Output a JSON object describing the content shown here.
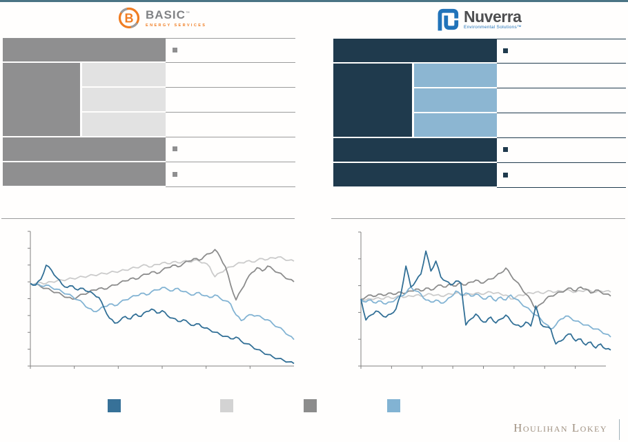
{
  "header": {
    "basic_logo": {
      "alt": "Basic Energy Services",
      "monogram": "B",
      "wordmark": "BASIC",
      "trademark": "™",
      "subtext": "ENERGY SERVICES"
    },
    "nuverra_logo": {
      "alt": "Nuverra Environmental Solutions",
      "wordmark": "Nuverra",
      "subtext": "Environmental Solutions™"
    }
  },
  "tables": {
    "left": {
      "style": "redacted gray blocks",
      "rows": 6,
      "merged_rows": [
        2,
        3,
        4
      ],
      "bullet_rows": [
        1,
        5,
        6
      ],
      "block_color": "#8F8F90",
      "cell_color": "#E2E2E2",
      "line_color": "#9B9B9B"
    },
    "right": {
      "style": "redacted navy blocks",
      "rows": 6,
      "merged_rows": [
        2,
        3,
        4
      ],
      "bullet_rows": [
        1,
        5,
        6
      ],
      "block_color": "#1F3A4D",
      "cell_color": "#8CB6D2",
      "line_color": "#1F3A4D"
    }
  },
  "chart_data": [
    {
      "type": "line",
      "title": "",
      "x_axis": {
        "tick_count": 6,
        "labels_visible": false
      },
      "y_axis": {
        "tick_count": 9,
        "labels_visible": false
      },
      "ylim": [
        0,
        163
      ],
      "legend_position": "below",
      "grid": false,
      "series": [
        {
          "name": "dark_blue",
          "color": "#316F96",
          "z": 4,
          "values": [
            100,
            98,
            105,
            122,
            116,
            107,
            99,
            95,
            97,
            92,
            94,
            90,
            87,
            83,
            70,
            58,
            52,
            55,
            60,
            57,
            63,
            60,
            66,
            69,
            64,
            67,
            61,
            58,
            54,
            56,
            52,
            49,
            51,
            46,
            44,
            41,
            38,
            36,
            33,
            35,
            30,
            27,
            24,
            20,
            17,
            14,
            11,
            9,
            7,
            5,
            3
          ]
        },
        {
          "name": "light_gray",
          "color": "#CBCBCB",
          "z": 1,
          "values": [
            100,
            100,
            101,
            100,
            102,
            103,
            104,
            105,
            106,
            107,
            108,
            109,
            110,
            111,
            112,
            113,
            114,
            115,
            116,
            118,
            119,
            121,
            122,
            120,
            123,
            125,
            124,
            126,
            125,
            127,
            126,
            128,
            127,
            125,
            120,
            108,
            113,
            117,
            120,
            123,
            125,
            127,
            126,
            128,
            130,
            129,
            131,
            132,
            130,
            128,
            127
          ]
        },
        {
          "name": "medium_gray",
          "color": "#8C8C8C",
          "z": 2,
          "values": [
            100,
            99,
            96,
            94,
            91,
            89,
            86,
            83,
            81,
            84,
            87,
            89,
            92,
            94,
            93,
            96,
            98,
            101,
            103,
            106,
            105,
            109,
            111,
            114,
            112,
            116,
            119,
            122,
            120,
            124,
            127,
            130,
            128,
            133,
            136,
            141,
            132,
            120,
            98,
            80,
            92,
            104,
            113,
            119,
            115,
            121,
            117,
            113,
            109,
            105,
            102
          ]
        },
        {
          "name": "light_blue",
          "color": "#82B3D3",
          "z": 3,
          "values": [
            100,
            99,
            97,
            98,
            95,
            93,
            90,
            87,
            84,
            80,
            76,
            70,
            66,
            68,
            72,
            75,
            73,
            77,
            80,
            83,
            85,
            88,
            86,
            90,
            92,
            95,
            93,
            91,
            94,
            90,
            88,
            86,
            89,
            85,
            83,
            86,
            82,
            79,
            75,
            62,
            55,
            60,
            62,
            61,
            58,
            56,
            51,
            47,
            43,
            37,
            32
          ]
        }
      ]
    },
    {
      "type": "line",
      "title": "",
      "x_axis": {
        "tick_count": 8,
        "labels_visible": false
      },
      "y_axis": {
        "tick_count": 6,
        "labels_visible": false
      },
      "ylim": [
        33,
        167
      ],
      "legend_position": "below",
      "grid": false,
      "series": [
        {
          "name": "dark_blue",
          "color": "#316F96",
          "z": 4,
          "values": [
            100,
            79,
            84,
            88,
            85,
            82,
            85,
            90,
            105,
            133,
            112,
            118,
            125,
            148,
            128,
            138,
            122,
            118,
            114,
            118,
            116,
            74,
            80,
            85,
            79,
            77,
            82,
            76,
            80,
            84,
            78,
            74,
            72,
            77,
            73,
            93,
            75,
            72,
            70,
            55,
            58,
            63,
            65,
            58,
            60,
            54,
            57,
            51,
            55,
            50,
            49
          ]
        },
        {
          "name": "light_gray",
          "color": "#CBCBCB",
          "z": 1,
          "values": [
            100,
            99,
            100,
            101,
            100,
            102,
            101,
            102,
            103,
            102,
            103,
            104,
            103,
            104,
            105,
            104,
            103,
            104,
            105,
            106,
            105,
            104,
            105,
            106,
            105,
            106,
            107,
            106,
            105,
            104,
            100,
            102,
            104,
            105,
            106,
            107,
            106,
            107,
            108,
            107,
            108,
            109,
            108,
            107,
            108,
            109,
            108,
            107,
            108,
            108,
            107
          ]
        },
        {
          "name": "medium_gray",
          "color": "#8C8C8C",
          "z": 2,
          "values": [
            100,
            102,
            104,
            103,
            105,
            104,
            106,
            105,
            107,
            106,
            108,
            110,
            108,
            111,
            109,
            112,
            114,
            112,
            115,
            113,
            116,
            114,
            117,
            119,
            116,
            118,
            120,
            123,
            126,
            131,
            124,
            118,
            112,
            105,
            99,
            90,
            95,
            100,
            103,
            105,
            107,
            109,
            111,
            108,
            112,
            110,
            106,
            109,
            107,
            105,
            103
          ]
        },
        {
          "name": "light_blue",
          "color": "#82B3D3",
          "z": 3,
          "values": [
            100,
            97,
            99,
            96,
            98,
            95,
            97,
            100,
            103,
            106,
            112,
            108,
            105,
            99,
            97,
            99,
            96,
            98,
            102,
            108,
            104,
            106,
            103,
            105,
            102,
            100,
            103,
            98,
            102,
            99,
            104,
            100,
            96,
            92,
            88,
            84,
            80,
            75,
            70,
            74,
            80,
            83,
            81,
            78,
            76,
            74,
            72,
            70,
            68,
            65,
            62
          ]
        }
      ]
    }
  ],
  "legend": {
    "labels_visible": false,
    "swatches": [
      {
        "name": "dark-blue",
        "color": "#377198"
      },
      {
        "name": "light-gray",
        "color": "#D3D3D3"
      },
      {
        "name": "medium-gray",
        "color": "#8C8C8C"
      },
      {
        "name": "light-blue",
        "color": "#82B3D3"
      }
    ]
  },
  "footer": {
    "brand": "Houlihan Lokey"
  },
  "colors": {
    "top_border": "#4A7484",
    "basic_orange": "#F07D22",
    "basic_gray": "#808285",
    "nuverra_blue": "#2173B9",
    "nuverra_charcoal": "#4D4E50",
    "gray_block": "#8F8F90",
    "gray_cell": "#E2E2E2",
    "navy_block": "#1F3A4D",
    "blue_cell": "#8CB6D2",
    "table_line_gray": "#9B9B9B",
    "table_line_navy": "#1F3A4D",
    "axis_gray": "#808080",
    "footer_text": "#A09181",
    "footer_bar": "#9FB0B8"
  }
}
